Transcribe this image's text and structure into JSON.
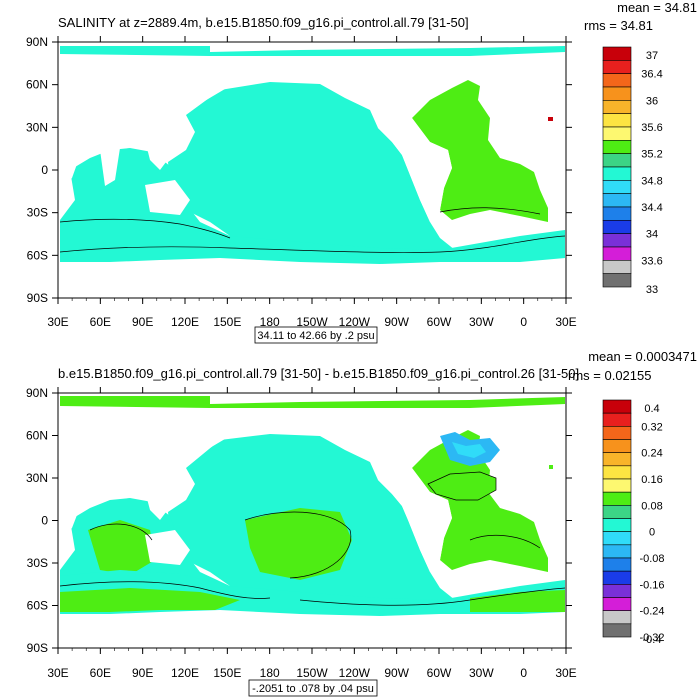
{
  "chart_data": [
    {
      "type": "heatmap",
      "title": "SALINITY at z=2889.4m, b.e15.B1850.f09_g16.pi_control.all.79 [31-50]",
      "stats": [
        "mean = 34.81",
        "rms = 34.81"
      ],
      "x_ticks": [
        "30E",
        "60E",
        "90E",
        "120E",
        "150E",
        "180",
        "150W",
        "120W",
        "90W",
        "60W",
        "30W",
        "0",
        "30E"
      ],
      "y_ticks": [
        "90N",
        "60N",
        "30N",
        "0",
        "30S",
        "60S",
        "90S"
      ],
      "contour_info": "34.11 to 42.66 by .2 psu",
      "colorbar_colors": [
        "#c8000a",
        "#e8201e",
        "#f4661a",
        "#f7921c",
        "#f8b42a",
        "#fde442",
        "#fdf870",
        "#4eed14",
        "#3cd486",
        "#23f8d4",
        "#30dcf8",
        "#2cb8f4",
        "#1e80ea",
        "#1a3ce8",
        "#7a30d8",
        "#d41ed8",
        "#c8c8c8",
        "#707070"
      ],
      "colorbar_labels": [
        "37",
        "36.4",
        "36",
        "35.6",
        "35.2",
        "34.8",
        "34.4",
        "34",
        "33.6",
        "33"
      ]
    },
    {
      "type": "heatmap",
      "title": "b.e15.B1850.f09_g16.pi_control.all.79 [31-50] - b.e15.B1850.f09_g16.pi_control.26 [31-50]",
      "stats": [
        "mean = 0.0003471",
        "rms = 0.02155"
      ],
      "x_ticks": [
        "30E",
        "60E",
        "90E",
        "120E",
        "150E",
        "180",
        "150W",
        "120W",
        "90W",
        "60W",
        "30W",
        "0",
        "30E"
      ],
      "y_ticks": [
        "90N",
        "60N",
        "30N",
        "0",
        "30S",
        "60S",
        "90S"
      ],
      "contour_info": "-.2051 to .078 by .04 psu",
      "colorbar_colors": [
        "#c8000a",
        "#e8201e",
        "#f4661a",
        "#f7921c",
        "#f8b42a",
        "#fde442",
        "#fdf870",
        "#4eed14",
        "#3cd486",
        "#23f8d4",
        "#30dcf8",
        "#2cb8f4",
        "#1e80ea",
        "#1a3ce8",
        "#7a30d8",
        "#d41ed8",
        "#c8c8c8",
        "#707070"
      ],
      "colorbar_labels": [
        "0.4",
        "0.32",
        "0.24",
        "0.16",
        "0.08",
        "0",
        "-0.08",
        "-0.16",
        "-0.24",
        "-0.32",
        "-0.4"
      ]
    }
  ]
}
